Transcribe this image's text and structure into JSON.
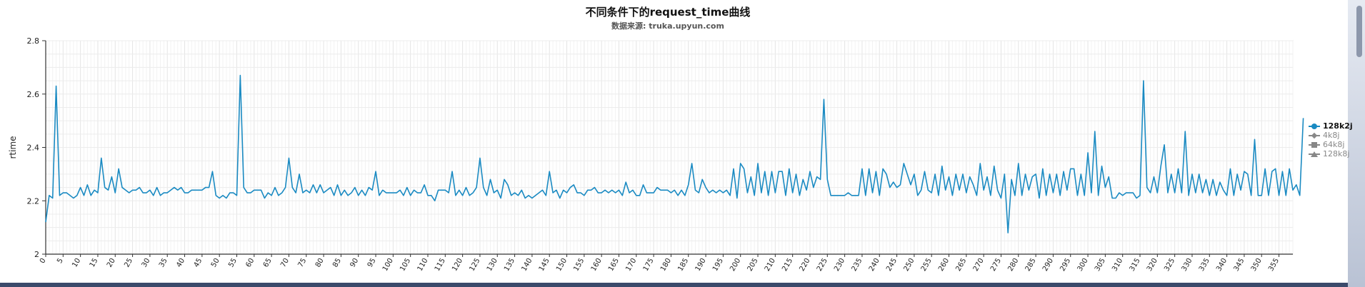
{
  "chart_data": {
    "type": "line",
    "title": "不同条件下的request_time曲线",
    "subtitle": "数据来源: truka.upyun.com",
    "ylabel": "rtime",
    "xlabel": "",
    "ylim": [
      2,
      2.8
    ],
    "yticks": [
      "2",
      "2.2",
      "2.4",
      "2.6",
      "2.8"
    ],
    "xlim": [
      0,
      359
    ],
    "xtick_step": 5,
    "grid": true,
    "legend_position": "right",
    "series": [
      {
        "name": "128k2j",
        "marker": "circle",
        "color": "#1a8ac2",
        "visible": true,
        "values": [
          2.12,
          2.22,
          2.21,
          2.63,
          2.22,
          2.23,
          2.23,
          2.22,
          2.21,
          2.22,
          2.25,
          2.22,
          2.26,
          2.22,
          2.24,
          2.23,
          2.36,
          2.25,
          2.24,
          2.29,
          2.23,
          2.32,
          2.25,
          2.24,
          2.23,
          2.24,
          2.24,
          2.25,
          2.23,
          2.23,
          2.24,
          2.22,
          2.25,
          2.22,
          2.23,
          2.23,
          2.24,
          2.25,
          2.24,
          2.25,
          2.23,
          2.23,
          2.24,
          2.24,
          2.24,
          2.24,
          2.25,
          2.25,
          2.31,
          2.22,
          2.21,
          2.22,
          2.21,
          2.23,
          2.23,
          2.22,
          2.67,
          2.25,
          2.23,
          2.23,
          2.24,
          2.24,
          2.24,
          2.21,
          2.23,
          2.22,
          2.25,
          2.22,
          2.23,
          2.25,
          2.36,
          2.25,
          2.23,
          2.3,
          2.23,
          2.24,
          2.23,
          2.26,
          2.23,
          2.26,
          2.23,
          2.24,
          2.25,
          2.22,
          2.26,
          2.22,
          2.24,
          2.22,
          2.23,
          2.25,
          2.22,
          2.24,
          2.22,
          2.25,
          2.24,
          2.31,
          2.22,
          2.24,
          2.23,
          2.23,
          2.23,
          2.23,
          2.24,
          2.22,
          2.25,
          2.22,
          2.24,
          2.23,
          2.23,
          2.26,
          2.22,
          2.22,
          2.2,
          2.24,
          2.24,
          2.24,
          2.23,
          2.31,
          2.22,
          2.24,
          2.22,
          2.25,
          2.22,
          2.23,
          2.25,
          2.36,
          2.25,
          2.22,
          2.28,
          2.23,
          2.24,
          2.21,
          2.28,
          2.26,
          2.22,
          2.23,
          2.22,
          2.24,
          2.21,
          2.22,
          2.21,
          2.22,
          2.23,
          2.24,
          2.22,
          2.31,
          2.23,
          2.24,
          2.21,
          2.24,
          2.23,
          2.25,
          2.26,
          2.23,
          2.23,
          2.22,
          2.24,
          2.24,
          2.25,
          2.23,
          2.23,
          2.24,
          2.23,
          2.24,
          2.23,
          2.24,
          2.22,
          2.27,
          2.23,
          2.24,
          2.22,
          2.22,
          2.26,
          2.23,
          2.23,
          2.23,
          2.25,
          2.24,
          2.24,
          2.24,
          2.23,
          2.24,
          2.22,
          2.24,
          2.22,
          2.26,
          2.34,
          2.24,
          2.23,
          2.28,
          2.25,
          2.23,
          2.24,
          2.23,
          2.24,
          2.23,
          2.24,
          2.22,
          2.32,
          2.21,
          2.34,
          2.32,
          2.23,
          2.29,
          2.22,
          2.34,
          2.23,
          2.31,
          2.22,
          2.31,
          2.23,
          2.31,
          2.31,
          2.22,
          2.32,
          2.23,
          2.3,
          2.22,
          2.28,
          2.24,
          2.31,
          2.25,
          2.29,
          2.28,
          2.58,
          2.28,
          2.22,
          2.22,
          2.22,
          2.22,
          2.22,
          2.23,
          2.22,
          2.22,
          2.22,
          2.32,
          2.22,
          2.32,
          2.23,
          2.31,
          2.22,
          2.32,
          2.3,
          2.25,
          2.27,
          2.25,
          2.26,
          2.34,
          2.3,
          2.26,
          2.3,
          2.22,
          2.24,
          2.31,
          2.24,
          2.23,
          2.3,
          2.22,
          2.33,
          2.24,
          2.29,
          2.22,
          2.3,
          2.24,
          2.3,
          2.23,
          2.29,
          2.26,
          2.22,
          2.34,
          2.24,
          2.29,
          2.22,
          2.33,
          2.24,
          2.21,
          2.3,
          2.08,
          2.28,
          2.22,
          2.34,
          2.22,
          2.3,
          2.24,
          2.29,
          2.3,
          2.21,
          2.32,
          2.22,
          2.3,
          2.23,
          2.3,
          2.22,
          2.31,
          2.24,
          2.32,
          2.32,
          2.22,
          2.3,
          2.22,
          2.38,
          2.23,
          2.46,
          2.22,
          2.33,
          2.25,
          2.29,
          2.21,
          2.21,
          2.23,
          2.22,
          2.23,
          2.23,
          2.23,
          2.21,
          2.22,
          2.65,
          2.25,
          2.23,
          2.29,
          2.23,
          2.33,
          2.41,
          2.23,
          2.3,
          2.23,
          2.32,
          2.23,
          2.46,
          2.22,
          2.3,
          2.23,
          2.3,
          2.23,
          2.28,
          2.22,
          2.28,
          2.22,
          2.27,
          2.24,
          2.22,
          2.32,
          2.22,
          2.3,
          2.24,
          2.31,
          2.3,
          2.22,
          2.43,
          2.22,
          2.22,
          2.32,
          2.22,
          2.31,
          2.32,
          2.22,
          2.31,
          2.22,
          2.32,
          2.24,
          2.26,
          2.22,
          2.51
        ]
      },
      {
        "name": "4k8j",
        "marker": "diamond",
        "color": "#888888",
        "visible": false,
        "values": []
      },
      {
        "name": "64k8j",
        "marker": "square",
        "color": "#888888",
        "visible": false,
        "values": []
      },
      {
        "name": "128k8j",
        "marker": "triangle",
        "color": "#888888",
        "visible": false,
        "values": []
      }
    ]
  }
}
